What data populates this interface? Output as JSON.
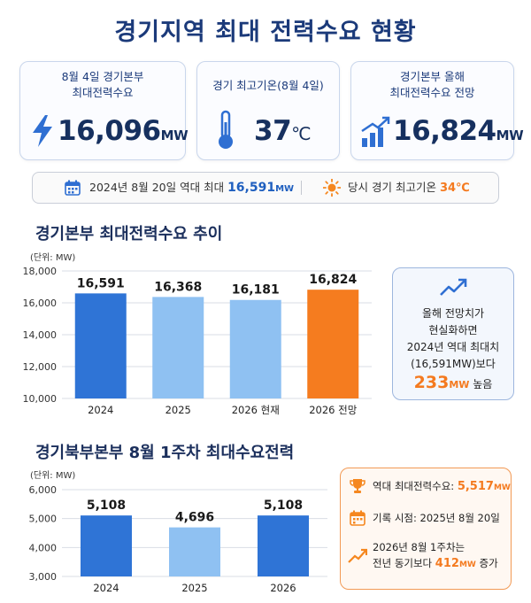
{
  "title": "경기지역 최대 전력수요 현황",
  "cards": [
    {
      "caption_line1": "8월 4일 경기본부",
      "caption_line2": "최대전력수요",
      "value": "16,096",
      "unit": "MW",
      "icon": "lightning-icon"
    },
    {
      "caption_line1": "경기 최고기온(8월 4일)",
      "caption_line2": "",
      "value": "37",
      "unit": "℃",
      "icon": "thermometer-icon"
    },
    {
      "caption_line1": "경기본부 올해",
      "caption_line2": "최대전력수요 전망",
      "value": "16,824",
      "unit": "MW",
      "icon": "growth-bars-icon"
    }
  ],
  "info_bar": {
    "left_text": "2024년 8월 20일 역대 최대",
    "left_value": "16,591",
    "left_unit": "MW",
    "right_text": "당시 경기 최고기온",
    "right_value": "34℃"
  },
  "chart1_panel": {
    "line1": "올해 전망치가",
    "line2": "현실화하면",
    "line3": "2024년 역대 최대치",
    "line4": "(16,591MW)보다",
    "value": "233",
    "unit": "MW",
    "suffix": "높음"
  },
  "chart2_panel": {
    "row1_label": "역대 최대전력수요:",
    "row1_value": "5,517",
    "row1_unit": "MW",
    "row2_label": "기록 시점: 2025년 8월 20일",
    "row3_line1": "2026년 8월 1주차는",
    "row3_line2_prefix": "전년 동기보다",
    "row3_value": "412",
    "row3_unit": "MW",
    "row3_suffix": "증가"
  },
  "colors": {
    "dark_blue": "#2f74d6",
    "light_blue": "#8fc1f2",
    "orange": "#f57c1f",
    "title": "#1b3a7a"
  },
  "chart_data": [
    {
      "type": "bar",
      "title": "경기본부 최대전력수요 추이",
      "unit_label": "(단위: MW)",
      "categories": [
        "2024",
        "2025",
        "2026 현재",
        "2026 전망"
      ],
      "values": [
        16591,
        16368,
        16181,
        16824
      ],
      "value_labels": [
        "16,591",
        "16,368",
        "16,181",
        "16,824"
      ],
      "bar_colors": [
        "#2f74d6",
        "#8fc1f2",
        "#8fc1f2",
        "#f57c1f"
      ],
      "ylim": [
        10000,
        18000
      ],
      "yticks": [
        10000,
        12000,
        14000,
        16000,
        18000
      ],
      "ytick_labels": [
        "10,000",
        "12,000",
        "14,000",
        "16,000",
        "18,000"
      ],
      "grid": true
    },
    {
      "type": "bar",
      "title": "경기북부본부 8월 1주차 최대수요전력",
      "unit_label": "(단위: MW)",
      "categories": [
        "2024",
        "2025",
        "2026"
      ],
      "values": [
        5108,
        4696,
        5108
      ],
      "value_labels": [
        "5,108",
        "4,696",
        "5,108"
      ],
      "bar_colors": [
        "#2f74d6",
        "#8fc1f2",
        "#2f74d6"
      ],
      "ylim": [
        3000,
        6000
      ],
      "yticks": [
        3000,
        4000,
        5000,
        6000
      ],
      "ytick_labels": [
        "3,000",
        "4,000",
        "5,000",
        "6,000"
      ],
      "grid": true
    }
  ]
}
